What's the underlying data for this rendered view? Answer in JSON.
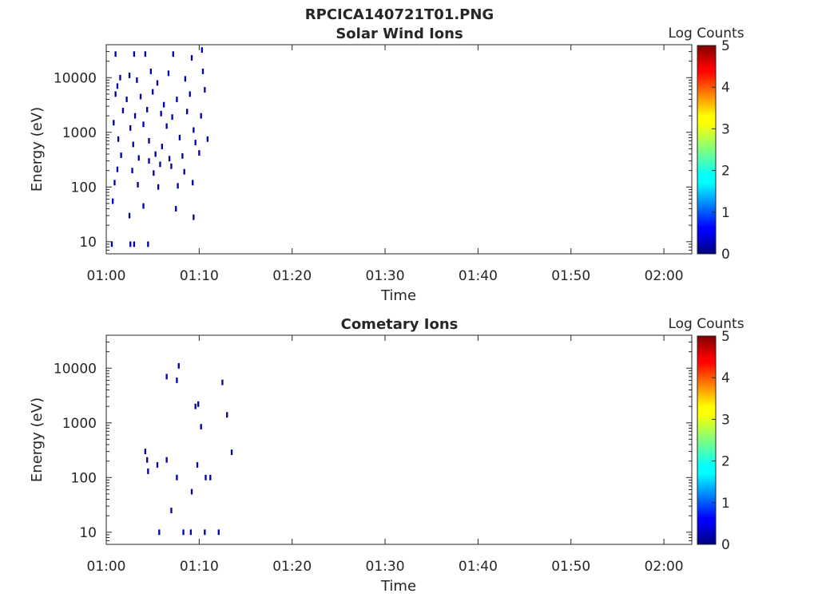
{
  "figure_title": "RPCICA140721T01.PNG",
  "chart_data": [
    {
      "type": "heatmap",
      "title": "Solar Wind Ions",
      "xlabel": "Time",
      "ylabel": "Energy (eV)",
      "yscale": "log",
      "xlim": [
        "01:00",
        "02:03"
      ],
      "ylim": [
        6,
        40000
      ],
      "x_ticks": [
        "01:00",
        "01:10",
        "01:20",
        "01:30",
        "01:40",
        "01:50",
        "02:00"
      ],
      "y_ticks": [
        "10",
        "100",
        "1000",
        "10000"
      ],
      "colorbar": {
        "label": "Log Counts",
        "range": [
          0,
          5
        ],
        "ticks": [
          "0",
          "1",
          "2",
          "3",
          "4",
          "5"
        ]
      },
      "grid": false,
      "cells": [
        {
          "t": 1.0,
          "e": 27000,
          "v": 0.2
        },
        {
          "t": 3.0,
          "e": 27000,
          "v": 0.2
        },
        {
          "t": 4.2,
          "e": 27000,
          "v": 0.2
        },
        {
          "t": 7.2,
          "e": 27000,
          "v": 0.2
        },
        {
          "t": 9.2,
          "e": 23000,
          "v": 0.2
        },
        {
          "t": 10.3,
          "e": 32000,
          "v": 0.2
        },
        {
          "t": 1.2,
          "e": 7000,
          "v": 0.2
        },
        {
          "t": 1.5,
          "e": 10000,
          "v": 0.2
        },
        {
          "t": 2.5,
          "e": 11000,
          "v": 0.2
        },
        {
          "t": 3.3,
          "e": 9000,
          "v": 0.2
        },
        {
          "t": 4.8,
          "e": 13000,
          "v": 0.2
        },
        {
          "t": 5.5,
          "e": 8000,
          "v": 0.2
        },
        {
          "t": 6.7,
          "e": 12000,
          "v": 0.2
        },
        {
          "t": 8.5,
          "e": 9500,
          "v": 0.2
        },
        {
          "t": 10.4,
          "e": 13000,
          "v": 0.2
        },
        {
          "t": 1.0,
          "e": 5000,
          "v": 0.2
        },
        {
          "t": 2.2,
          "e": 4000,
          "v": 0.2
        },
        {
          "t": 3.7,
          "e": 4500,
          "v": 0.2
        },
        {
          "t": 5.0,
          "e": 5500,
          "v": 0.2
        },
        {
          "t": 6.2,
          "e": 3200,
          "v": 0.2
        },
        {
          "t": 7.6,
          "e": 4000,
          "v": 0.2
        },
        {
          "t": 9.0,
          "e": 5000,
          "v": 0.2
        },
        {
          "t": 10.6,
          "e": 6000,
          "v": 0.2
        },
        {
          "t": 1.8,
          "e": 2500,
          "v": 0.2
        },
        {
          "t": 3.1,
          "e": 2000,
          "v": 0.2
        },
        {
          "t": 4.4,
          "e": 2600,
          "v": 0.2
        },
        {
          "t": 5.9,
          "e": 2200,
          "v": 0.2
        },
        {
          "t": 7.1,
          "e": 1900,
          "v": 0.2
        },
        {
          "t": 8.7,
          "e": 2400,
          "v": 0.2
        },
        {
          "t": 10.2,
          "e": 2000,
          "v": 0.2
        },
        {
          "t": 0.8,
          "e": 1500,
          "v": 0.2
        },
        {
          "t": 2.6,
          "e": 1200,
          "v": 0.2
        },
        {
          "t": 4.0,
          "e": 1400,
          "v": 0.2
        },
        {
          "t": 6.5,
          "e": 1300,
          "v": 0.2
        },
        {
          "t": 9.4,
          "e": 1100,
          "v": 0.2
        },
        {
          "t": 1.3,
          "e": 750,
          "v": 0.2
        },
        {
          "t": 2.9,
          "e": 600,
          "v": 0.2
        },
        {
          "t": 4.6,
          "e": 700,
          "v": 0.2
        },
        {
          "t": 6.0,
          "e": 550,
          "v": 0.2
        },
        {
          "t": 7.9,
          "e": 800,
          "v": 0.2
        },
        {
          "t": 9.6,
          "e": 650,
          "v": 0.2
        },
        {
          "t": 10.9,
          "e": 750,
          "v": 0.2
        },
        {
          "t": 1.6,
          "e": 380,
          "v": 0.2
        },
        {
          "t": 3.5,
          "e": 340,
          "v": 0.2
        },
        {
          "t": 5.3,
          "e": 400,
          "v": 0.2
        },
        {
          "t": 6.8,
          "e": 330,
          "v": 0.2
        },
        {
          "t": 8.2,
          "e": 370,
          "v": 0.2
        },
        {
          "t": 10.0,
          "e": 420,
          "v": 0.2
        },
        {
          "t": 4.6,
          "e": 300,
          "v": 0.2
        },
        {
          "t": 5.8,
          "e": 260,
          "v": 0.2
        },
        {
          "t": 7.0,
          "e": 240,
          "v": 0.2
        },
        {
          "t": 1.2,
          "e": 210,
          "v": 0.2
        },
        {
          "t": 2.8,
          "e": 200,
          "v": 0.2
        },
        {
          "t": 5.1,
          "e": 180,
          "v": 0.2
        },
        {
          "t": 8.4,
          "e": 190,
          "v": 0.2
        },
        {
          "t": 0.9,
          "e": 120,
          "v": 0.2
        },
        {
          "t": 3.4,
          "e": 110,
          "v": 0.2
        },
        {
          "t": 5.6,
          "e": 100,
          "v": 0.2
        },
        {
          "t": 7.7,
          "e": 105,
          "v": 0.2
        },
        {
          "t": 9.3,
          "e": 120,
          "v": 0.2
        },
        {
          "t": 0.7,
          "e": 55,
          "v": 0.2
        },
        {
          "t": 2.5,
          "e": 30,
          "v": 0.2
        },
        {
          "t": 4.0,
          "e": 45,
          "v": 0.2
        },
        {
          "t": 7.5,
          "e": 40,
          "v": 0.2
        },
        {
          "t": 9.4,
          "e": 28,
          "v": 0.2
        },
        {
          "t": 0.6,
          "e": 9,
          "v": 0.2
        },
        {
          "t": 2.6,
          "e": 9,
          "v": 0.2
        },
        {
          "t": 3.0,
          "e": 9,
          "v": 0.2
        },
        {
          "t": 4.5,
          "e": 9,
          "v": 0.2
        }
      ]
    },
    {
      "type": "heatmap",
      "title": "Cometary Ions",
      "xlabel": "Time",
      "ylabel": "Energy (eV)",
      "yscale": "log",
      "xlim": [
        "01:00",
        "02:03"
      ],
      "ylim": [
        6,
        40000
      ],
      "x_ticks": [
        "01:00",
        "01:10",
        "01:20",
        "01:30",
        "01:40",
        "01:50",
        "02:00"
      ],
      "y_ticks": [
        "10",
        "100",
        "1000",
        "10000"
      ],
      "colorbar": {
        "label": "Log Counts",
        "range": [
          0,
          5
        ],
        "ticks": [
          "0",
          "1",
          "2",
          "3",
          "4",
          "5"
        ]
      },
      "grid": false,
      "cells": [
        {
          "t": 7.8,
          "e": 11000,
          "v": 0.2
        },
        {
          "t": 6.5,
          "e": 7000,
          "v": 0.2
        },
        {
          "t": 7.6,
          "e": 6000,
          "v": 0.2
        },
        {
          "t": 12.5,
          "e": 5500,
          "v": 0.2
        },
        {
          "t": 9.9,
          "e": 2200,
          "v": 0.2
        },
        {
          "t": 9.6,
          "e": 2000,
          "v": 0.2
        },
        {
          "t": 13.0,
          "e": 1400,
          "v": 0.2
        },
        {
          "t": 10.2,
          "e": 850,
          "v": 0.2
        },
        {
          "t": 4.2,
          "e": 300,
          "v": 0.2
        },
        {
          "t": 13.5,
          "e": 290,
          "v": 0.2
        },
        {
          "t": 4.4,
          "e": 210,
          "v": 0.2
        },
        {
          "t": 6.5,
          "e": 210,
          "v": 0.2
        },
        {
          "t": 5.5,
          "e": 170,
          "v": 0.2
        },
        {
          "t": 9.8,
          "e": 170,
          "v": 0.2
        },
        {
          "t": 4.5,
          "e": 130,
          "v": 0.2
        },
        {
          "t": 7.6,
          "e": 100,
          "v": 0.2
        },
        {
          "t": 10.7,
          "e": 100,
          "v": 0.2
        },
        {
          "t": 11.2,
          "e": 100,
          "v": 0.2
        },
        {
          "t": 9.2,
          "e": 55,
          "v": 0.2
        },
        {
          "t": 7.0,
          "e": 25,
          "v": 0.2
        },
        {
          "t": 5.7,
          "e": 10,
          "v": 0.2
        },
        {
          "t": 8.3,
          "e": 10,
          "v": 0.2
        },
        {
          "t": 9.1,
          "e": 10,
          "v": 0.2
        },
        {
          "t": 10.6,
          "e": 10,
          "v": 0.2
        },
        {
          "t": 12.1,
          "e": 10,
          "v": 0.2
        }
      ]
    }
  ]
}
